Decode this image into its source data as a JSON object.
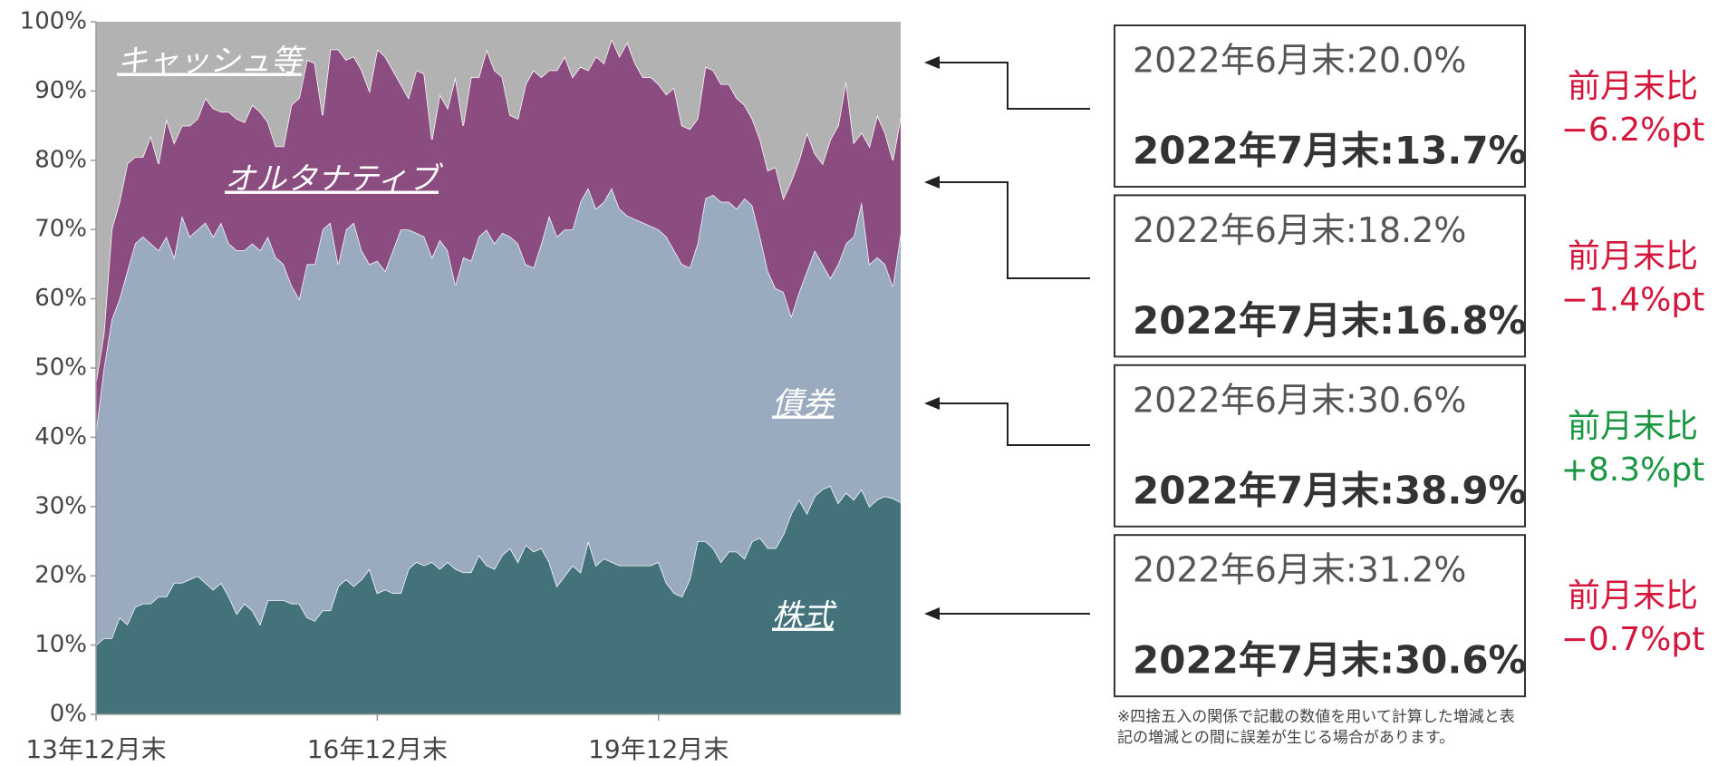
{
  "chart_data": {
    "type": "stacked_area",
    "categories": [
      "13年12月末",
      null,
      null,
      null,
      null,
      null,
      null,
      null,
      null,
      null,
      null,
      null,
      null,
      null,
      null,
      null,
      null,
      null,
      null,
      null,
      null,
      null,
      null,
      null,
      null,
      null,
      null,
      null,
      null,
      null,
      null,
      null,
      null,
      null,
      null,
      null,
      "16年12月末",
      null,
      null,
      null,
      null,
      null,
      null,
      null,
      null,
      null,
      null,
      null,
      null,
      null,
      null,
      null,
      null,
      null,
      null,
      null,
      null,
      null,
      null,
      null,
      null,
      null,
      null,
      null,
      null,
      null,
      null,
      null,
      null,
      null,
      null,
      null,
      "19年12月末",
      null,
      null,
      null,
      null,
      null,
      null,
      null,
      null,
      null,
      null,
      null,
      null,
      null,
      null,
      null,
      null,
      null,
      null,
      null,
      null,
      null,
      null,
      null,
      null,
      null,
      null,
      null,
      null,
      null,
      null,
      null
    ],
    "series": [
      {
        "name": "株式",
        "color": "#43727a",
        "values": [
          10,
          11,
          11,
          14,
          13,
          15.5,
          16,
          16,
          17,
          17,
          19,
          19,
          19.5,
          20,
          19,
          18,
          19,
          17,
          14.5,
          16,
          15,
          13,
          16.5,
          16.5,
          16.5,
          16,
          16,
          14,
          13.5,
          15,
          15,
          18.5,
          19.5,
          18.5,
          19.5,
          21,
          17.5,
          18,
          17.5,
          17.5,
          21,
          22,
          21.5,
          22,
          21,
          22,
          21,
          20.5,
          20.5,
          23,
          21.5,
          21,
          23,
          24,
          22,
          24.5,
          23.5,
          24,
          22,
          18.5,
          20,
          21.5,
          20.5,
          25,
          21.5,
          22.5,
          22,
          21.5,
          21.5,
          21.5,
          21.5,
          21.5,
          22,
          19,
          17.5,
          17,
          19.5,
          25,
          25,
          24,
          22,
          23.5,
          23.5,
          22.5,
          25,
          25.5,
          24,
          24,
          26,
          29,
          31,
          29,
          31.5,
          32.5,
          33,
          30.5,
          32,
          31,
          32.5,
          30,
          31,
          31.5,
          31.2,
          30.6
        ]
      },
      {
        "name": "債券",
        "color": "#9aabc0",
        "values": [
          31,
          39,
          46,
          46,
          51,
          52.5,
          53,
          52,
          50,
          52,
          47,
          53,
          49.5,
          50,
          52,
          51,
          52,
          51,
          52.5,
          51,
          53,
          54,
          52.5,
          49.5,
          48.5,
          46,
          44,
          51,
          51.5,
          55,
          56,
          46.5,
          50.5,
          52.5,
          47.5,
          44,
          48,
          46,
          49.5,
          52.5,
          49,
          47.5,
          47.5,
          44,
          47.5,
          45,
          41,
          45.5,
          45,
          46,
          48.5,
          47,
          46.5,
          45,
          46,
          40.5,
          41,
          44,
          50,
          50.5,
          50,
          48.5,
          53.5,
          51,
          51.5,
          51.5,
          54,
          51.5,
          50.5,
          50,
          49.5,
          49,
          48,
          50,
          49.5,
          48,
          45,
          43,
          49.5,
          51,
          52,
          50.5,
          49.5,
          52,
          48.5,
          43.5,
          40,
          37.5,
          35,
          28.5,
          30,
          35,
          35.5,
          32.5,
          30,
          34.5,
          36,
          38,
          41.5,
          35,
          35,
          33.5,
          30.6,
          38.9
        ]
      },
      {
        "name": "オルタナティブ",
        "color": "#8b4c80",
        "values": [
          7,
          5,
          13,
          14,
          15.5,
          12.5,
          11.5,
          15.5,
          12.5,
          17,
          16.5,
          13,
          16,
          16,
          18,
          18.5,
          16,
          19,
          19,
          18.5,
          20,
          20,
          16.5,
          16,
          17,
          26,
          29,
          29.5,
          29,
          16.5,
          25,
          31,
          24.5,
          24,
          26,
          25,
          30.5,
          31,
          26,
          21,
          19,
          23.5,
          23.5,
          17,
          21,
          20.5,
          30,
          19,
          26.5,
          23,
          26,
          25,
          22.5,
          17.5,
          18,
          26,
          28.5,
          24,
          21,
          24,
          25,
          22,
          19.5,
          17,
          22,
          20,
          21.5,
          22,
          25,
          22.5,
          21,
          21.5,
          21,
          20.5,
          23.5,
          20,
          20,
          18,
          19,
          18,
          17,
          17,
          16,
          13.5,
          12.5,
          14,
          14.5,
          17.5,
          13.5,
          19.5,
          19,
          20,
          14,
          14.5,
          20,
          20,
          23.5,
          13.5,
          10,
          17,
          20.5,
          19,
          18.2,
          16.8
        ]
      },
      {
        "name": "キャッシュ等",
        "color": "#b2b2b2",
        "values": [
          52,
          45,
          30,
          26,
          20.5,
          19.5,
          19.5,
          16.5,
          20.5,
          14,
          17.5,
          15,
          15,
          14,
          11,
          12.5,
          13,
          13,
          14,
          14.5,
          12,
          13,
          14.5,
          18,
          18,
          12,
          11,
          5.5,
          6,
          13.5,
          4,
          4,
          5.5,
          5,
          7,
          10,
          4,
          5,
          7,
          9,
          11,
          7,
          7.5,
          17,
          10.5,
          12.5,
          8,
          15,
          8,
          8,
          4,
          7,
          8,
          13.5,
          14,
          9,
          7,
          8,
          7,
          7,
          5,
          8,
          6.5,
          7,
          5,
          6,
          2.5,
          5,
          3,
          6,
          8,
          8,
          9,
          10.5,
          9.5,
          15,
          15.5,
          14,
          6.5,
          7,
          9,
          9,
          11,
          12,
          14,
          17,
          21.5,
          21,
          25.5,
          23,
          20,
          16,
          19,
          20.5,
          17,
          15,
          8.5,
          17.5,
          16,
          18,
          13.5,
          16,
          20,
          13.7
        ]
      }
    ],
    "ylim": [
      0,
      100
    ],
    "yticks": [
      {
        "value": 0,
        "label": "0%"
      },
      {
        "value": 10,
        "label": "10%"
      },
      {
        "value": 20,
        "label": "20%"
      },
      {
        "value": 30,
        "label": "30%"
      },
      {
        "value": 40,
        "label": "40%"
      },
      {
        "value": 50,
        "label": "50%"
      },
      {
        "value": 60,
        "label": "60%"
      },
      {
        "value": 70,
        "label": "70%"
      },
      {
        "value": 80,
        "label": "80%"
      },
      {
        "value": 90,
        "label": "90%"
      },
      {
        "value": 100,
        "label": "100%"
      }
    ],
    "annotations": [
      {
        "jun": "2022年6月末:20.0%",
        "jul": "2022年7月末:13.7%",
        "change_label": "前月末比",
        "change": "−6.2%pt",
        "color": "#d4163c"
      },
      {
        "jun": "2022年6月末:18.2%",
        "jul": "2022年7月末:16.8%",
        "change_label": "前月末比",
        "change": "−1.4%pt",
        "color": "#d4163c"
      },
      {
        "jun": "2022年6月末:30.6%",
        "jul": "2022年7月末:38.9%",
        "change_label": "前月末比",
        "change": "+8.3%pt",
        "color": "#1a9641"
      },
      {
        "jun": "2022年6月末:31.2%",
        "jul": "2022年7月末:30.6%",
        "change_label": "前月末比",
        "change": "−0.7%pt",
        "color": "#d4163c"
      }
    ],
    "note": "※四捨五入の関係で記載の数値を用いて計算した増減と表記の増減との間に誤差が生じる場合があります。"
  }
}
